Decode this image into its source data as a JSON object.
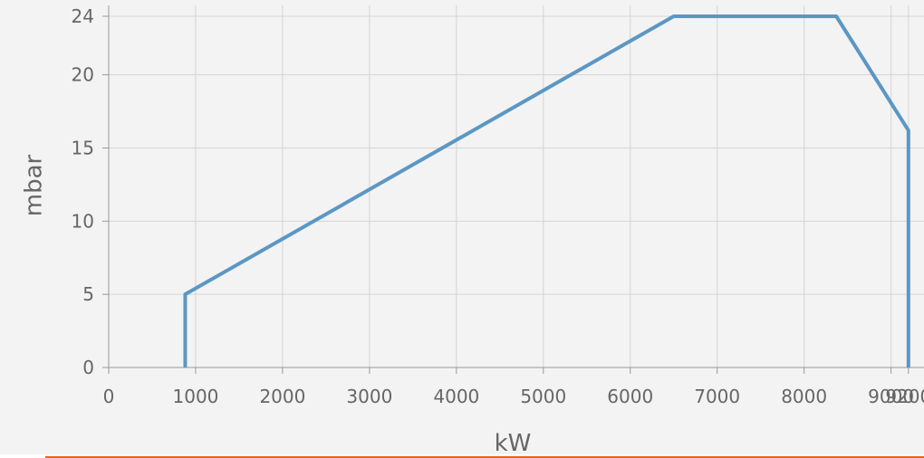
{
  "chart_data": {
    "type": "line",
    "title": "",
    "xlabel": "kW",
    "ylabel": "mbar",
    "xlim": [
      0,
      9400
    ],
    "ylim": [
      0,
      24
    ],
    "x_ticks": [
      {
        "value": 0,
        "label": "0"
      },
      {
        "value": 1000,
        "label": "1000"
      },
      {
        "value": 2000,
        "label": "2000"
      },
      {
        "value": 3000,
        "label": "3000"
      },
      {
        "value": 4000,
        "label": "4000"
      },
      {
        "value": 5000,
        "label": "5000"
      },
      {
        "value": 6000,
        "label": "6000"
      },
      {
        "value": 7000,
        "label": "7000"
      },
      {
        "value": 8000,
        "label": "8000"
      },
      {
        "value": 9000,
        "label": "9000"
      },
      {
        "value": 9200,
        "label": "9200"
      }
    ],
    "y_ticks": [
      {
        "value": 0,
        "label": "0"
      },
      {
        "value": 5,
        "label": "5"
      },
      {
        "value": 10,
        "label": "10"
      },
      {
        "value": 15,
        "label": "15"
      },
      {
        "value": 20,
        "label": "20"
      },
      {
        "value": 24,
        "label": "24"
      }
    ],
    "grid": true,
    "series": [
      {
        "color": "#5b97c4",
        "points": [
          {
            "x": 880,
            "y": 0
          },
          {
            "x": 880,
            "y": 5
          },
          {
            "x": 6500,
            "y": 24
          },
          {
            "x": 8370,
            "y": 24
          },
          {
            "x": 9200,
            "y": 16.2
          },
          {
            "x": 9200,
            "y": 0
          }
        ]
      }
    ]
  }
}
